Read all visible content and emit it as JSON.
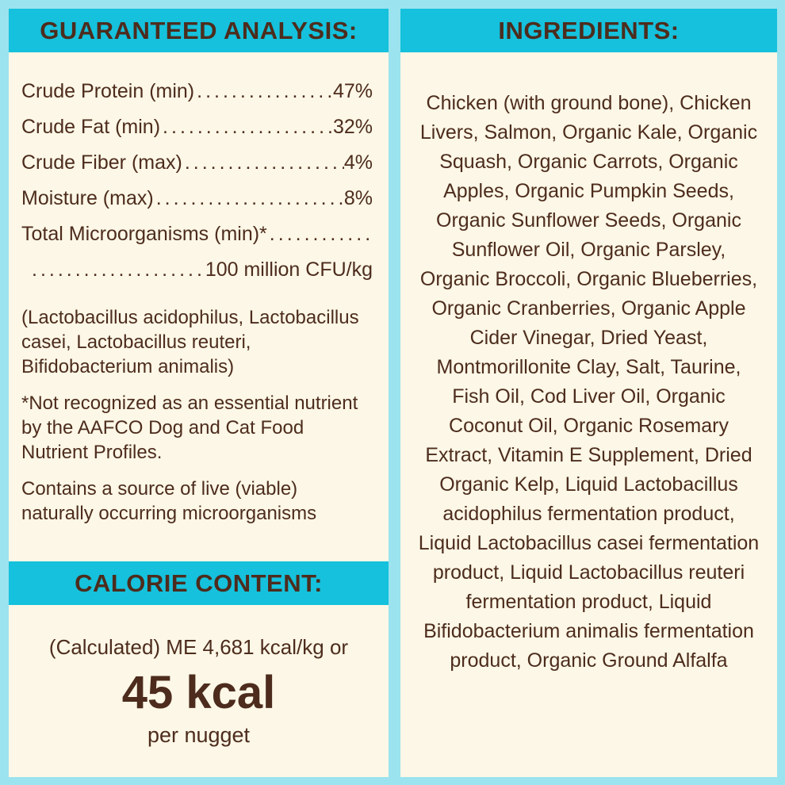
{
  "colors": {
    "outer_border": "#9be3ee",
    "header_band": "#15c1dc",
    "panel_background": "#fcf7e6",
    "text_brown": "#4d2c1d"
  },
  "left_panel": {
    "header": "GUARANTEED ANALYSIS:",
    "leader_dots": "................................................",
    "analysis_rows": [
      {
        "label": "Crude Protein (min)",
        "value": "47%"
      },
      {
        "label": "Crude Fat (min)",
        "value": "32%"
      },
      {
        "label": "Crude Fiber (max)",
        "value": "4%"
      },
      {
        "label": "Moisture (max)",
        "value": "8%"
      },
      {
        "label": "Total Microorganisms (min)*",
        "value": ""
      },
      {
        "label": "",
        "value": "100 million CFU/kg"
      }
    ],
    "notes": [
      "(Lactobacillus acidophilus, Lactobacillus casei, Lactobacillus reuteri, Bifidobacterium animalis)",
      "*Not recognized as an essential nutrient by the AAFCO Dog and Cat Food Nutrient Profiles.",
      "Contains a source of live (viable) naturally occurring microorganisms"
    ],
    "calorie": {
      "header": "CALORIE CONTENT:",
      "line1": "(Calculated) ME 4,681 kcal/kg or",
      "value": "45 kcal",
      "unit": "per nugget"
    }
  },
  "right_panel": {
    "header": "INGREDIENTS:",
    "ingredients": "Chicken (with ground bone), Chicken Livers, Salmon, Organic Kale, Organic Squash, Organic Carrots, Organic Apples, Organic Pumpkin Seeds, Organic Sunflower Seeds, Organic Sunflower Oil, Organic Parsley, Organic Broccoli, Organic Blueberries, Organic Cranberries, Organic Apple Cider Vinegar, Dried Yeast, Montmorillonite Clay, Salt, Taurine, Fish Oil, Cod Liver Oil, Organic Coconut Oil, Organic Rosemary Extract, Vitamin E Supplement, Dried Organic Kelp, Liquid Lactobacillus acidophilus fermentation product, Liquid Lactobacillus casei fermentation product, Liquid Lactobacillus reuteri fermentation product, Liquid Bifidobacterium animalis fermentation product, Organic Ground Alfalfa"
  }
}
